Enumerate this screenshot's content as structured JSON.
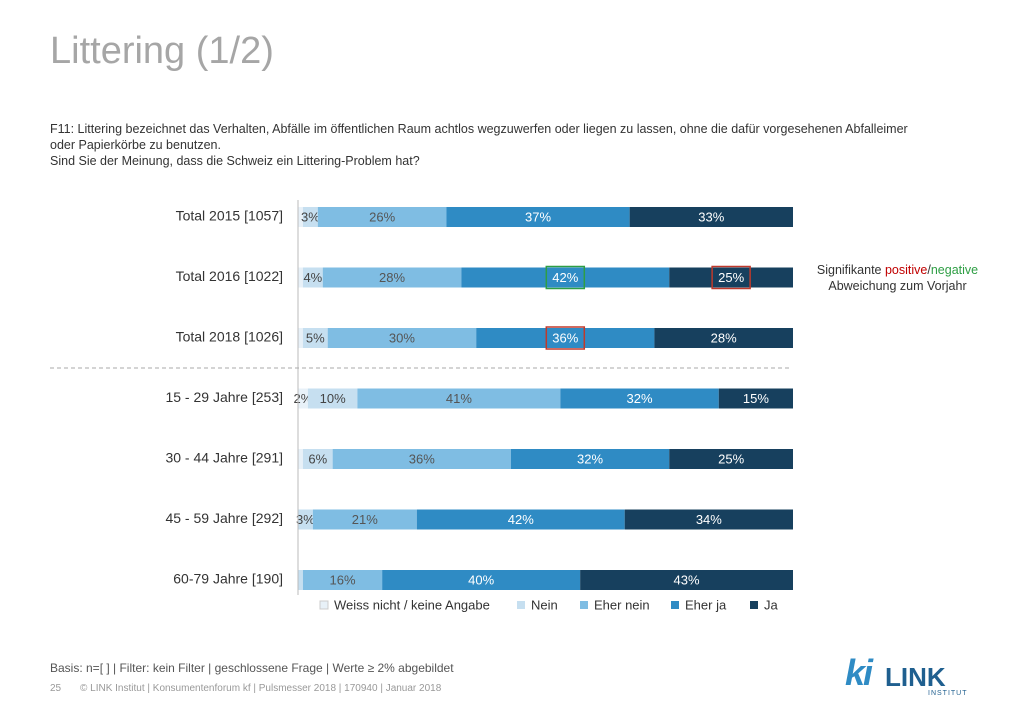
{
  "header": {
    "title": "Littering (1/2)",
    "question": [
      "F11: Littering bezeichnet das Verhalten, Abfälle im öffentlichen Raum achtlos wegzuwerfen oder liegen zu lassen, ohne die dafür vorgesehenen Abfalleimer",
      "oder Papierkörbe zu benutzen.",
      "Sind Sie der Meinung, dass die Schweiz ein Littering-Problem hat?"
    ]
  },
  "chart_data": {
    "type": "stacked_barh",
    "categories": [
      "Total 2015 [1057]",
      "Total 2016 [1022]",
      "Total 2018 [1026]",
      "15 - 29 Jahre [253]",
      "30 - 44 Jahre [291]",
      "45 - 59 Jahre [292]",
      "60-79 Jahre [190]"
    ],
    "xlim": [
      0,
      100
    ],
    "series": [
      {
        "name": "Weiss nicht / keine Angabe",
        "color": "#e8f1f8",
        "label_color": "#444444",
        "values": [
          1,
          1,
          1,
          2,
          1,
          0,
          0
        ],
        "value_labels": [
          null,
          null,
          null,
          "2%",
          null,
          null,
          null
        ]
      },
      {
        "name": "Nein",
        "color": "#c6dff0",
        "label_color": "#444444",
        "values": [
          3,
          4,
          5,
          10,
          6,
          3,
          1
        ],
        "value_labels": [
          "3%",
          "4%",
          "5%",
          "10%",
          "6%",
          "3%",
          null
        ]
      },
      {
        "name": "Eher nein",
        "color": "#7fbde3",
        "label_color": "#555555",
        "values": [
          26,
          28,
          30,
          41,
          36,
          21,
          16
        ],
        "value_labels": [
          "26%",
          "28%",
          "30%",
          "41%",
          "36%",
          "21%",
          "16%"
        ]
      },
      {
        "name": "Eher ja",
        "color": "#2f8bc4",
        "label_color": "#ffffff",
        "values": [
          37,
          42,
          36,
          32,
          32,
          42,
          40
        ],
        "value_labels": [
          "37%",
          "42%",
          "36%",
          "32%",
          "32%",
          "42%",
          "40%"
        ]
      },
      {
        "name": "Ja",
        "color": "#17405e",
        "label_color": "#ffffff",
        "values": [
          33,
          25,
          28,
          15,
          25,
          34,
          43
        ],
        "value_labels": [
          "33%",
          "25%",
          "28%",
          "15%",
          "25%",
          "34%",
          "43%"
        ]
      }
    ],
    "highlights": [
      {
        "row": 1,
        "series": 3,
        "color": "#2e9e44"
      },
      {
        "row": 1,
        "series": 4,
        "color": "#c0392b"
      },
      {
        "row": 2,
        "series": 3,
        "color": "#c0392b"
      }
    ],
    "legend": "bottom"
  },
  "note": {
    "prefix": "Signifikante",
    "positive": "positive",
    "separator": "/",
    "negative": "negative",
    "line2": "Abweichung zum Vorjahr"
  },
  "footer": {
    "basis": "Basis: n=[ ] | Filter: kein Filter | geschlossene Frage | Werte ≥ 2% abgebildet",
    "page": "25",
    "copyright": "© LINK Institut | Konsumentenforum kf | Pulsmesser 2018 | 170940 | Januar 2018"
  },
  "logo": {
    "mark": "ki",
    "name": "LINK",
    "sub": "INSTITUT"
  }
}
